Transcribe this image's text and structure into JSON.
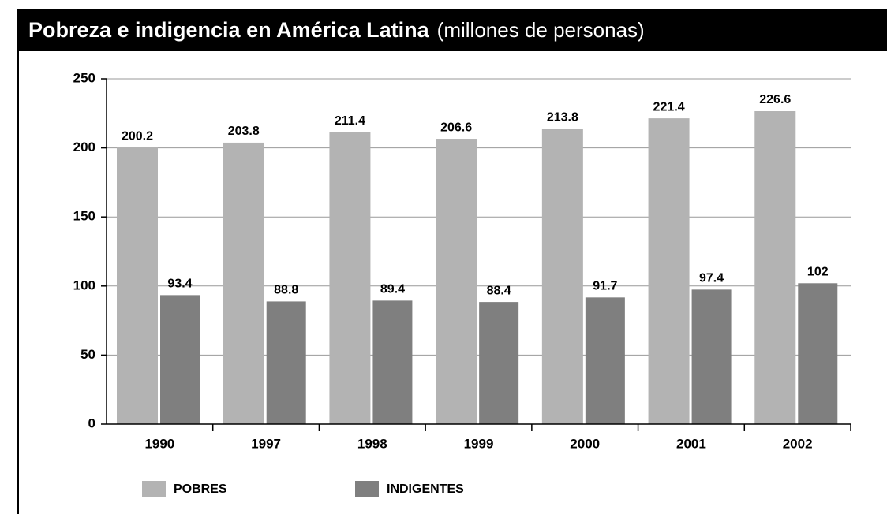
{
  "chart_data": {
    "type": "bar",
    "title": "Pobreza e indigencia en América Latina",
    "subtitle": "(millones de personas)",
    "categories": [
      "1990",
      "1997",
      "1998",
      "1999",
      "2000",
      "2001",
      "2002"
    ],
    "series": [
      {
        "name": "POBRES",
        "color": "#b3b3b3",
        "values": [
          200.2,
          203.8,
          211.4,
          206.6,
          213.8,
          221.4,
          226.6
        ]
      },
      {
        "name": "INDIGENTES",
        "color": "#7f7f7f",
        "values": [
          93.4,
          88.8,
          89.4,
          88.4,
          91.7,
          97.4,
          102
        ]
      }
    ],
    "ylim": [
      0,
      250
    ],
    "yticks": [
      0,
      50,
      100,
      150,
      200,
      250
    ],
    "grid": true,
    "legend": "bottom-left"
  }
}
